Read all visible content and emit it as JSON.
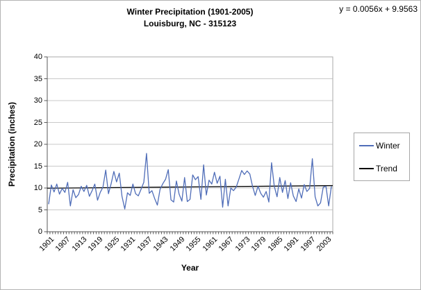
{
  "title": {
    "line1": "Winter Precipitation (1901-2005)",
    "line2": "Louisburg, NC - 315123"
  },
  "equation": "y = 0.0056x + 9.9563",
  "legend": {
    "items": [
      {
        "label": "Winter",
        "color": "#4f6db8"
      },
      {
        "label": "Trend",
        "color": "#000000"
      }
    ]
  },
  "colors": {
    "gridline": "#c9c9c9",
    "plot_border": "#a9a9a9",
    "axis": "#595959",
    "background": "#ffffff"
  },
  "chart_data": {
    "type": "line",
    "title": "Winter Precipitation (1901-2005), Louisburg, NC - 315123",
    "xlabel": "Year",
    "ylabel": "Precipitation (inches)",
    "ylim": [
      0,
      40
    ],
    "ytick_step": 5,
    "x_start": 1901,
    "x_end": 2005,
    "xtick_every": 6,
    "xtick_labels": [
      "1901",
      "1907",
      "1913",
      "1919",
      "1925",
      "1931",
      "1937",
      "1943",
      "1949",
      "1955",
      "1961",
      "1967",
      "1973",
      "1979",
      "1985",
      "1991",
      "1997",
      "2003"
    ],
    "grid": "horizontal",
    "legend_position": "right",
    "series": [
      {
        "name": "Winter",
        "type": "line",
        "color": "#4f6db8",
        "values": [
          6.3,
          10.7,
          9.1,
          10.9,
          8.6,
          9.9,
          9.0,
          11.3,
          5.9,
          9.6,
          7.8,
          8.5,
          10.4,
          9.2,
          10.6,
          8.1,
          9.4,
          10.9,
          7.2,
          9.0,
          10.2,
          14.1,
          8.7,
          11.0,
          13.8,
          11.4,
          13.4,
          8.1,
          5.2,
          8.9,
          8.3,
          10.9,
          8.7,
          8.2,
          9.7,
          11.3,
          17.9,
          8.8,
          9.4,
          7.6,
          6.1,
          9.7,
          11.0,
          12.0,
          14.2,
          7.3,
          6.8,
          11.6,
          8.6,
          7.0,
          12.4,
          6.9,
          7.4,
          13.0,
          11.9,
          12.6,
          7.4,
          15.3,
          8.4,
          11.8,
          10.9,
          13.6,
          11.1,
          12.7,
          5.6,
          12.0,
          5.9,
          10.0,
          9.4,
          10.2,
          12.1,
          14.0,
          13.1,
          13.9,
          13.2,
          10.4,
          8.3,
          10.4,
          8.8,
          7.9,
          9.2,
          6.8,
          15.8,
          10.4,
          8.0,
          12.4,
          9.0,
          11.7,
          7.6,
          11.2,
          8.2,
          6.9,
          9.8,
          7.7,
          10.8,
          9.2,
          9.9,
          16.7,
          8.0,
          5.9,
          6.6,
          10.2,
          10.4,
          5.9,
          10.4
        ]
      },
      {
        "name": "Trend",
        "type": "trendline",
        "color": "#000000",
        "equation": "y = 0.0056x + 9.9563",
        "slope": 0.0056,
        "intercept": 9.9563
      }
    ]
  }
}
